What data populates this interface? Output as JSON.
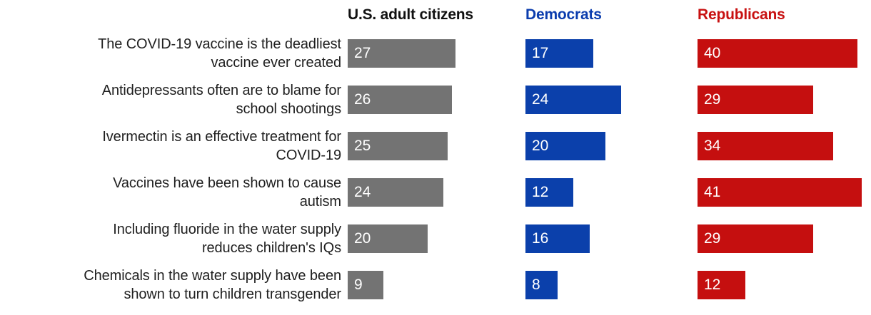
{
  "chart_data": {
    "type": "bar",
    "orientation": "horizontal",
    "title": "",
    "xlabel": "",
    "ylabel": "",
    "xlim": [
      0,
      44
    ],
    "grid": false,
    "legend_position": "column-headers-top",
    "value_labels": "inside-left",
    "value_label_color": "#ffffff",
    "categories": [
      "The COVID-19 vaccine is the deadliest vaccine ever created",
      "Antidepressants often are to blame for school shootings",
      "Ivermectin is an effective treatment for COVID-19",
      "Vaccines have been shown to cause autism",
      "Including fluoride in the water supply reduces children's IQs",
      "Chemicals in the water supply have been shown to turn children transgender"
    ],
    "category_lines": [
      [
        "The COVID-19 vaccine is the deadliest",
        "vaccine ever created"
      ],
      [
        "Antidepressants often are to blame for",
        "school shootings"
      ],
      [
        "Ivermectin is an effective treatment for",
        "COVID-19"
      ],
      [
        "Vaccines have been shown to cause",
        "autism"
      ],
      [
        "Including fluoride in the water supply",
        "reduces children's IQs"
      ],
      [
        "Chemicals in the water supply have been",
        "shown to turn children transgender"
      ]
    ],
    "series": [
      {
        "name": "U.S. adult citizens",
        "slug": "us-adult-citizens",
        "bar_color": "#737373",
        "header_color": "#111111",
        "values": [
          27,
          26,
          25,
          24,
          20,
          9
        ]
      },
      {
        "name": "Democrats",
        "slug": "democrats",
        "bar_color": "#0b40ab",
        "header_color": "#0b3dae",
        "values": [
          17,
          24,
          20,
          12,
          16,
          8
        ]
      },
      {
        "name": "Republicans",
        "slug": "republicans",
        "bar_color": "#c50f0f",
        "header_color": "#c81111",
        "values": [
          40,
          29,
          34,
          41,
          29,
          12
        ]
      }
    ],
    "label_text_color": "#1f1f1f"
  }
}
